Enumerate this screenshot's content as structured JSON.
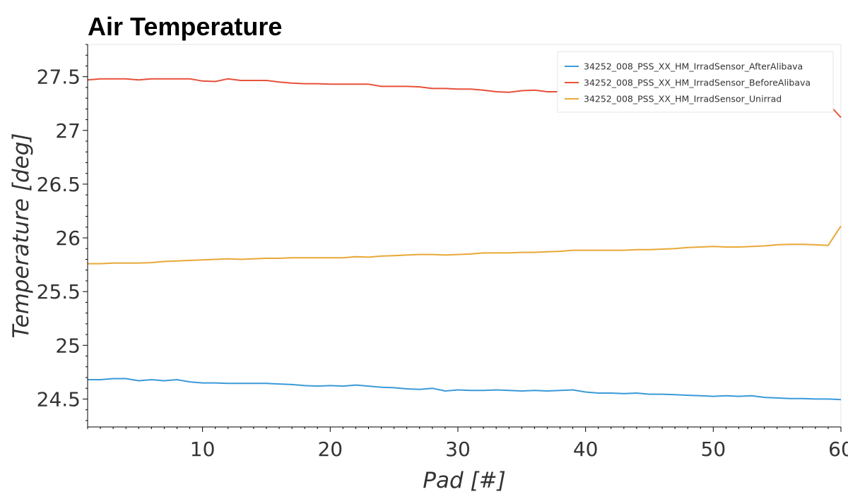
{
  "chart_data": {
    "type": "line",
    "title": "Air Temperature",
    "xlabel": "Pad [#]",
    "ylabel": "Temperature [deg]",
    "xlim": [
      1,
      60
    ],
    "ylim": [
      24.24,
      27.8
    ],
    "x_ticks": [
      10,
      20,
      30,
      40,
      50,
      60
    ],
    "y_ticks": [
      24.5,
      25,
      25.5,
      26,
      26.5,
      27,
      27.5
    ],
    "y_tick_labels": [
      "24.5",
      "25",
      "25.5",
      "26",
      "26.5",
      "27",
      "27.5"
    ],
    "grid": false,
    "legend_position": "top-right",
    "x": [
      1,
      2,
      3,
      4,
      5,
      6,
      7,
      8,
      9,
      10,
      11,
      12,
      13,
      14,
      15,
      16,
      17,
      18,
      19,
      20,
      21,
      22,
      23,
      24,
      25,
      26,
      27,
      28,
      29,
      30,
      31,
      32,
      33,
      34,
      35,
      36,
      37,
      38,
      39,
      40,
      41,
      42,
      43,
      44,
      45,
      46,
      47,
      48,
      49,
      50,
      51,
      52,
      53,
      54,
      55,
      56,
      57,
      58,
      59,
      60
    ],
    "series": [
      {
        "name": "34252_008_PSS_XX_HM_IrradSensor_AfterAlibava",
        "color": "#3a9ad9",
        "values": [
          24.68,
          24.68,
          24.69,
          24.69,
          24.67,
          24.68,
          24.67,
          24.68,
          24.66,
          24.65,
          24.65,
          24.645,
          24.645,
          24.645,
          24.645,
          24.64,
          24.635,
          24.625,
          24.62,
          24.625,
          24.62,
          24.63,
          24.62,
          24.61,
          24.605,
          24.595,
          24.59,
          24.6,
          24.575,
          24.585,
          24.58,
          24.58,
          24.585,
          24.58,
          24.575,
          24.58,
          24.575,
          24.58,
          24.585,
          24.565,
          24.555,
          24.555,
          24.55,
          24.555,
          24.545,
          24.545,
          24.54,
          24.535,
          24.53,
          24.525,
          24.53,
          24.525,
          24.53,
          24.515,
          24.51,
          24.505,
          24.505,
          24.5,
          24.5,
          24.495
        ]
      },
      {
        "name": "34252_008_PSS_XX_HM_IrradSensor_BeforeAlibava",
        "color": "#e8503a",
        "values": [
          27.47,
          27.48,
          27.48,
          27.48,
          27.47,
          27.48,
          27.48,
          27.48,
          27.48,
          27.46,
          27.455,
          27.48,
          27.465,
          27.465,
          27.465,
          27.45,
          27.44,
          27.435,
          27.435,
          27.43,
          27.43,
          27.43,
          27.43,
          27.41,
          27.41,
          27.41,
          27.405,
          27.39,
          27.39,
          27.385,
          27.385,
          27.375,
          27.36,
          27.355,
          27.37,
          27.375,
          27.36,
          27.36,
          27.35,
          27.34,
          27.34,
          27.34,
          27.34,
          27.33,
          27.33,
          27.33,
          27.32,
          27.32,
          27.31,
          27.31,
          27.3,
          27.3,
          27.3,
          27.29,
          27.29,
          27.29,
          27.28,
          27.28,
          27.25,
          27.12
        ]
      },
      {
        "name": "34252_008_PSS_XX_HM_IrradSensor_Unirrad",
        "color": "#e8a838",
        "values": [
          25.76,
          25.76,
          25.765,
          25.765,
          25.765,
          25.77,
          25.78,
          25.785,
          25.79,
          25.795,
          25.8,
          25.805,
          25.8,
          25.805,
          25.81,
          25.81,
          25.815,
          25.815,
          25.815,
          25.815,
          25.815,
          25.825,
          25.82,
          25.83,
          25.835,
          25.84,
          25.845,
          25.845,
          25.84,
          25.845,
          25.85,
          25.86,
          25.86,
          25.86,
          25.865,
          25.865,
          25.87,
          25.875,
          25.885,
          25.885,
          25.885,
          25.885,
          25.885,
          25.89,
          25.89,
          25.895,
          25.9,
          25.91,
          25.915,
          25.92,
          25.915,
          25.915,
          25.92,
          25.925,
          25.935,
          25.94,
          25.94,
          25.935,
          25.93,
          26.11
        ]
      }
    ]
  }
}
